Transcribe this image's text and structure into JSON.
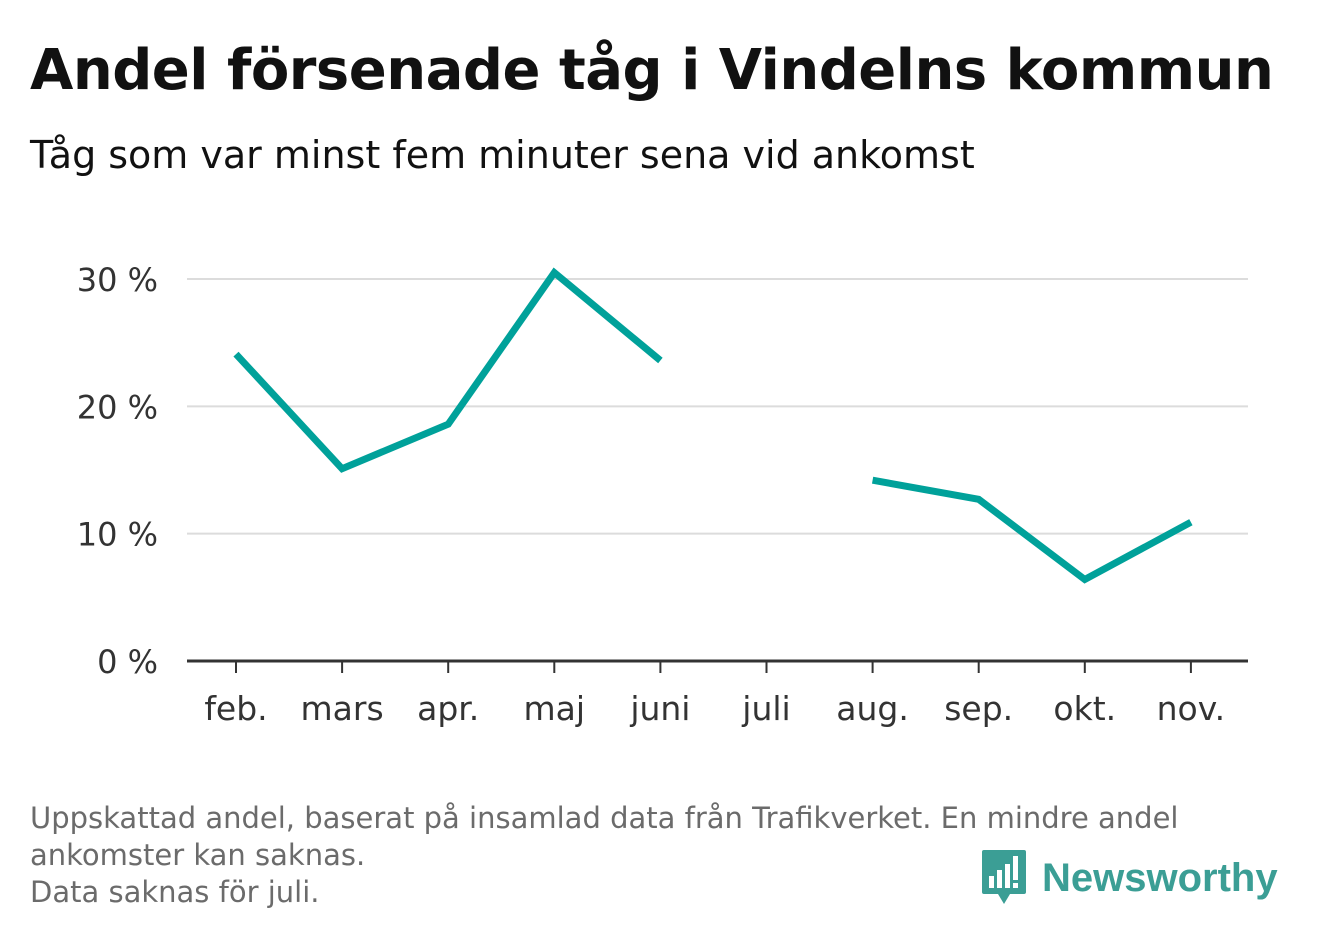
{
  "header": {
    "title": "Andel försenade tåg i Vindelns kommun",
    "subtitle": "Tåg som var minst fem minuter sena vid ankomst"
  },
  "footer": {
    "note_line1": "Uppskattad andel, baserat på insamlad data från Trafikverket. En mindre andel",
    "note_line2": "ankomster kan saknas.",
    "note_line3": "Data saknas för juli."
  },
  "brand": {
    "name": "Newsworthy",
    "icon": "bar-chart-speech-bubble-icon",
    "color": "#3b9e95"
  },
  "chart_data": {
    "type": "line",
    "title": "Andel försenade tåg i Vindelns kommun",
    "subtitle": "Tåg som var minst fem minuter sena vid ankomst",
    "xlabel": "",
    "ylabel": "",
    "categories": [
      "feb.",
      "mars",
      "apr.",
      "maj",
      "juni",
      "juli",
      "aug.",
      "sep.",
      "okt.",
      "nov."
    ],
    "series": [
      {
        "values": [
          24.1,
          15.1,
          18.6,
          30.5,
          23.6,
          null,
          14.2,
          12.7,
          6.4,
          10.9
        ],
        "color": "#00a19a"
      }
    ],
    "ylim": [
      0,
      30
    ],
    "yticks": [
      0,
      10,
      20,
      30
    ],
    "ytick_labels": [
      "0 %",
      "10 %",
      "20 %",
      "30 %"
    ],
    "grid": true,
    "legend": "none"
  }
}
